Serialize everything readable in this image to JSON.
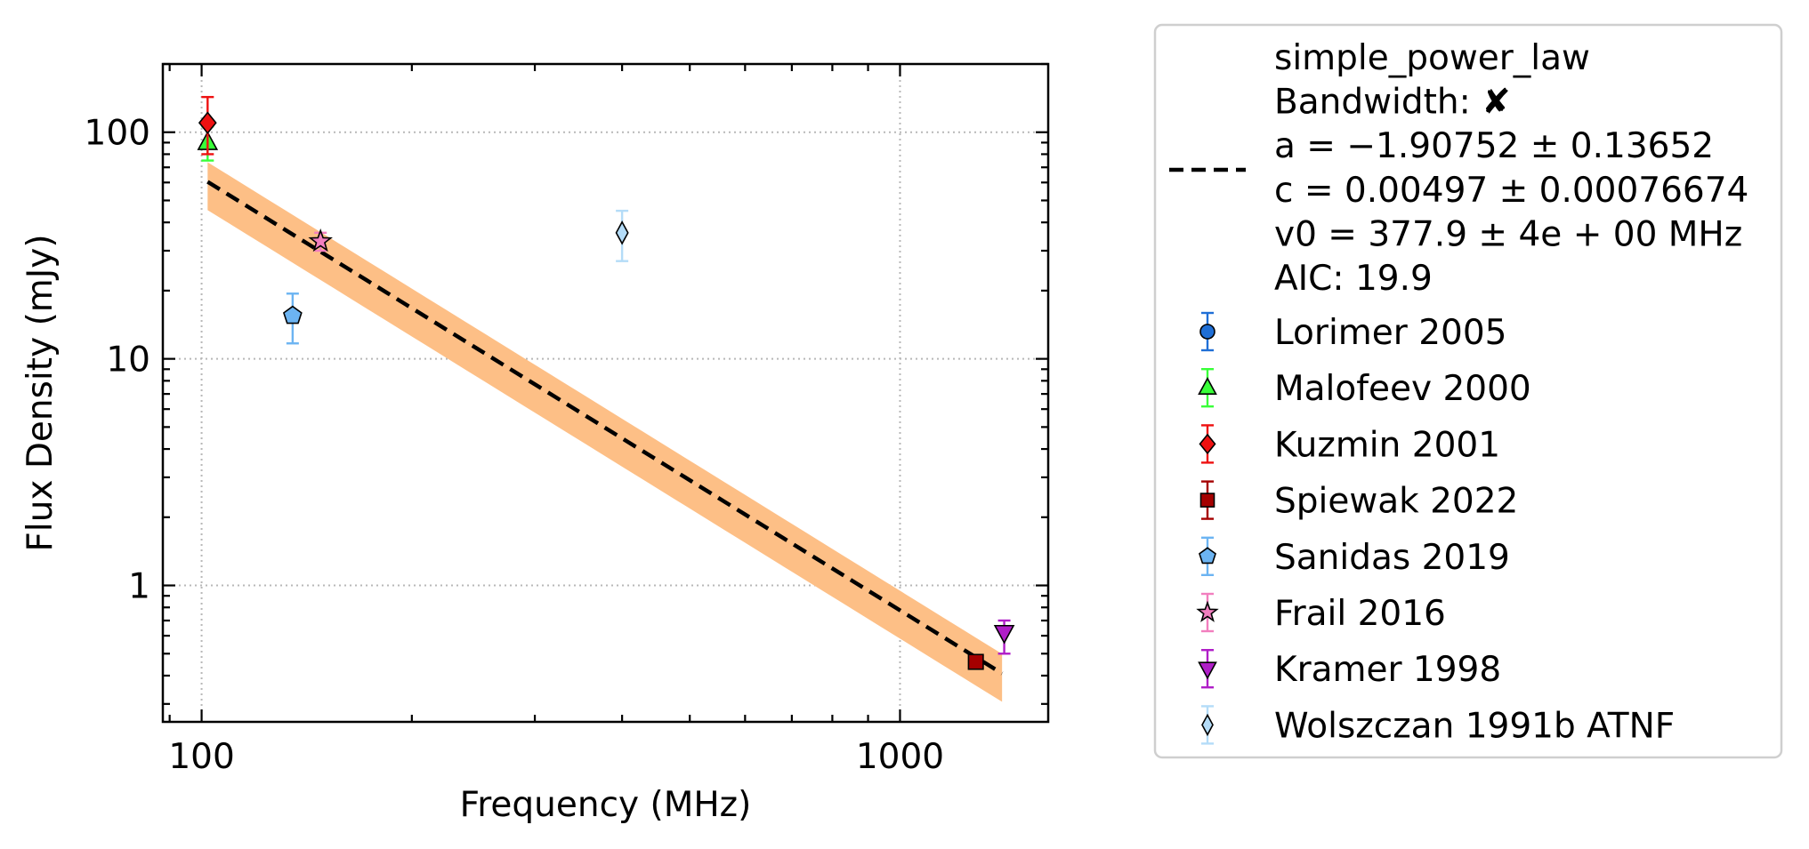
{
  "chart_data": {
    "type": "scatter",
    "title": "",
    "xlabel": "Frequency (MHz)",
    "ylabel": "Flux Density (mJy)",
    "xscale": "log",
    "yscale": "log",
    "xlim": [
      88,
      1630
    ],
    "ylim": [
      0.25,
      200
    ],
    "x_ticks": [
      {
        "value": 100,
        "label": "100"
      },
      {
        "value": 1000,
        "label": "1000"
      }
    ],
    "y_ticks": [
      {
        "value": 1,
        "label": "1"
      },
      {
        "value": 10,
        "label": "10"
      },
      {
        "value": 100,
        "label": "100"
      }
    ],
    "grid": true,
    "legend_position": "outside-right",
    "fit": {
      "name": "simple_power_law",
      "lines": [
        "simple_power_law",
        "Bandwidth: ✘",
        "a = −1.90752 ± 0.13652",
        "c = 0.00497 ± 0.00076674",
        "v0 = 377.9 ± 4e + 00 MHz",
        "AIC: 19.9"
      ],
      "a": -1.90752,
      "c_mJy": 4.97,
      "v0_MHz": 377.9,
      "x_range": [
        102,
        1400
      ],
      "band_low_factor": 0.75,
      "band_high_factor": 1.22,
      "line_color": "#000000",
      "band_color": "#fdbf86"
    },
    "series": [
      {
        "name": "Lorimer 2005",
        "marker": "circle",
        "color": "#1f6fd6",
        "points": []
      },
      {
        "name": "Malofeev 2000",
        "marker": "triangle-up",
        "color": "#39ff39",
        "points": [
          {
            "x": 102,
            "y": 90,
            "yerr_low": 15,
            "yerr_high": 16
          }
        ]
      },
      {
        "name": "Kuzmin 2001",
        "marker": "diamond",
        "color": "#ee1111",
        "points": [
          {
            "x": 102,
            "y": 110,
            "yerr_low": 30,
            "yerr_high": 33
          }
        ]
      },
      {
        "name": "Spiewak 2022",
        "marker": "square",
        "color": "#a50000",
        "points": [
          {
            "x": 1284,
            "y": 0.46,
            "yerr_low": 0.03,
            "yerr_high": 0.03
          }
        ]
      },
      {
        "name": "Sanidas 2019",
        "marker": "pentagon",
        "color": "#6cb4f2",
        "points": [
          {
            "x": 135,
            "y": 15.5,
            "yerr_low": 3.8,
            "yerr_high": 3.9
          }
        ]
      },
      {
        "name": "Frail 2016",
        "marker": "star",
        "color": "#f27fbf",
        "points": [
          {
            "x": 148,
            "y": 33,
            "yerr_low": 3,
            "yerr_high": 3
          }
        ]
      },
      {
        "name": "Kramer 1998",
        "marker": "triangle-down",
        "color": "#b01ec8",
        "points": [
          {
            "x": 1410,
            "y": 0.62,
            "yerr_low": 0.12,
            "yerr_high": 0.08
          }
        ]
      },
      {
        "name": "Wolszczan 1991b ATNF",
        "marker": "thin-diamond",
        "color": "#b4dcf8",
        "points": [
          {
            "x": 400,
            "y": 36,
            "yerr_low": 9,
            "yerr_high": 9
          }
        ]
      }
    ]
  }
}
